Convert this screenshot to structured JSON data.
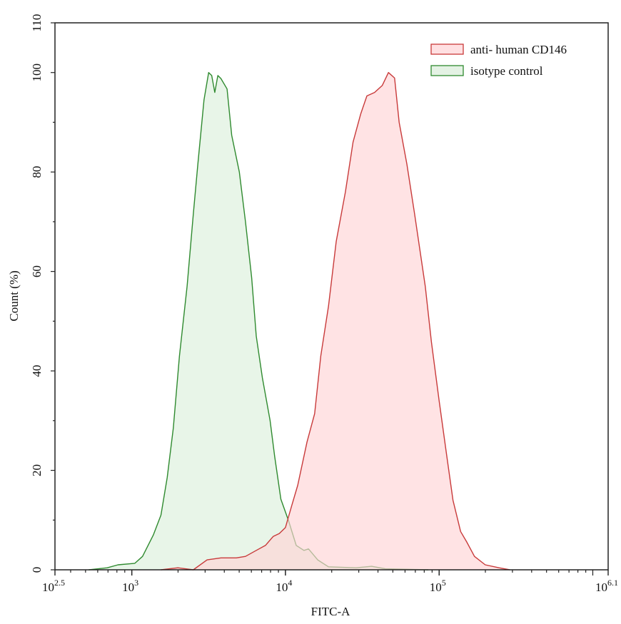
{
  "chart_data": {
    "type": "area",
    "title": "",
    "xlabel": "FITC-A",
    "ylabel": "Count  (%)",
    "xscale": "log10",
    "xlim_log10": [
      2.5,
      6.1
    ],
    "ylim": [
      0,
      110
    ],
    "x_ticks": [
      {
        "log": 2.5,
        "base": "10",
        "exp": "2.5"
      },
      {
        "log": 3,
        "base": "10",
        "exp": "3"
      },
      {
        "log": 4,
        "base": "10",
        "exp": "4"
      },
      {
        "log": 5,
        "base": "10",
        "exp": "5"
      },
      {
        "log": 6.1,
        "base": "10",
        "exp": "6.1"
      }
    ],
    "y_ticks": [
      0,
      20,
      40,
      60,
      80,
      100,
      110
    ],
    "grid": false,
    "legend_position": "top-right",
    "series": [
      {
        "name": "anti- human CD146",
        "stroke": "#c83a3a",
        "fill": "#ffd4d6",
        "x_log10": [
          3.19,
          3.3,
          3.4,
          3.49,
          3.58,
          3.68,
          3.74,
          3.81,
          3.87,
          3.92,
          3.96,
          4.0,
          4.04,
          4.08,
          4.14,
          4.19,
          4.23,
          4.28,
          4.33,
          4.39,
          4.44,
          4.49,
          4.53,
          4.58,
          4.63,
          4.67,
          4.71,
          4.74,
          4.79,
          4.84,
          4.91,
          4.95,
          5.0,
          5.05,
          5.09,
          5.14,
          5.18,
          5.23,
          5.3,
          5.39,
          5.46
        ],
        "y": [
          0,
          0.4,
          0,
          2,
          2.4,
          2.4,
          2.7,
          3.9,
          4.9,
          6.7,
          7.3,
          8.5,
          12.8,
          17,
          25.7,
          31.4,
          43,
          53,
          66,
          76,
          86,
          91.7,
          95.3,
          96,
          97.4,
          100,
          98.9,
          90,
          81.6,
          71.6,
          57,
          45.8,
          34,
          22.8,
          14,
          7.7,
          5.6,
          2.7,
          1,
          0.4,
          0
        ]
      },
      {
        "name": "isotype control",
        "stroke": "#2f8a2f",
        "fill": "#dcefdc",
        "x_log10": [
          2.72,
          2.84,
          2.91,
          3.02,
          3.07,
          3.14,
          3.19,
          3.23,
          3.27,
          3.31,
          3.36,
          3.4,
          3.43,
          3.47,
          3.5,
          3.52,
          3.54,
          3.56,
          3.58,
          3.62,
          3.65,
          3.7,
          3.74,
          3.78,
          3.81,
          3.85,
          3.9,
          3.93,
          3.97,
          4.02,
          4.07,
          4.12,
          4.15,
          4.21,
          4.28,
          4.46,
          4.56,
          4.65,
          4.93
        ],
        "y": [
          0,
          0.4,
          1,
          1.3,
          2.7,
          7,
          11,
          18.5,
          28.5,
          43,
          57,
          71.5,
          81.6,
          94.5,
          100,
          99.4,
          96,
          99.4,
          98.8,
          96.7,
          87.4,
          80,
          70,
          58.7,
          47,
          38.6,
          30,
          22.8,
          14.2,
          9.9,
          4.9,
          3.9,
          4.2,
          2,
          0.6,
          0.4,
          0.7,
          0.2,
          0
        ]
      }
    ]
  }
}
